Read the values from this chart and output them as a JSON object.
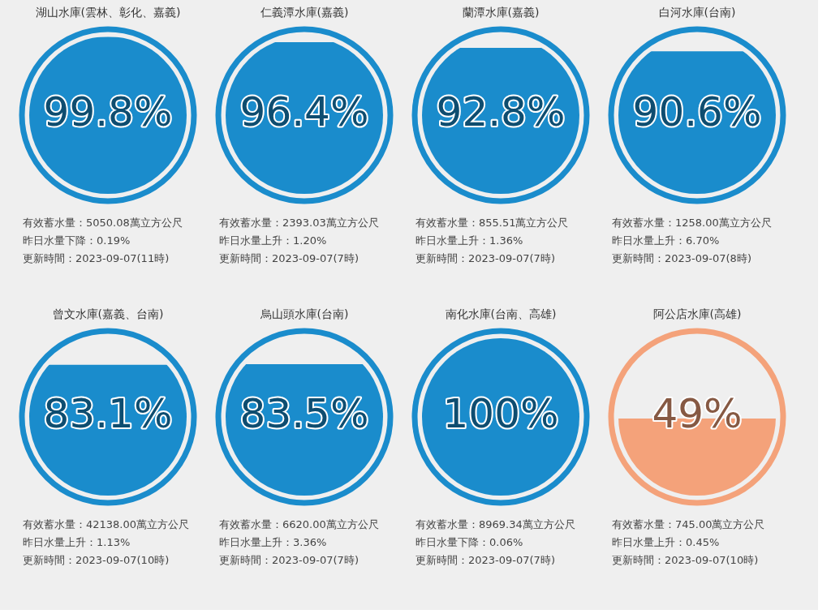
{
  "chart_data": [
    {
      "type": "other",
      "title": "湖山水庫(雲林、彰化、嘉義)",
      "values": [
        99.8
      ],
      "value_labels": [
        "99.8%"
      ],
      "color": "#1a8ccc",
      "annotations": [
        "有效蓄水量：5050.08萬立方公尺",
        "昨日水量下降：0.19%",
        "更新時間：2023-09-07(11時)"
      ]
    },
    {
      "type": "other",
      "title": "仁義潭水庫(嘉義)",
      "values": [
        96.4
      ],
      "value_labels": [
        "96.4%"
      ],
      "color": "#1a8ccc",
      "annotations": [
        "有效蓄水量：2393.03萬立方公尺",
        "昨日水量上升：1.20%",
        "更新時間：2023-09-07(7時)"
      ]
    },
    {
      "type": "other",
      "title": "蘭潭水庫(嘉義)",
      "values": [
        92.8
      ],
      "value_labels": [
        "92.8%"
      ],
      "color": "#1a8ccc",
      "annotations": [
        "有效蓄水量：855.51萬立方公尺",
        "昨日水量上升：1.36%",
        "更新時間：2023-09-07(7時)"
      ]
    },
    {
      "type": "other",
      "title": "白河水庫(台南)",
      "values": [
        90.6
      ],
      "value_labels": [
        "90.6%"
      ],
      "color": "#1a8ccc",
      "annotations": [
        "有效蓄水量：1258.00萬立方公尺",
        "昨日水量上升：6.70%",
        "更新時間：2023-09-07(8時)"
      ]
    },
    {
      "type": "other",
      "title": "曾文水庫(嘉義、台南)",
      "values": [
        83.1
      ],
      "value_labels": [
        "83.1%"
      ],
      "color": "#1a8ccc",
      "annotations": [
        "有效蓄水量：42138.00萬立方公尺",
        "昨日水量上升：1.13%",
        "更新時間：2023-09-07(10時)"
      ]
    },
    {
      "type": "other",
      "title": "烏山頭水庫(台南)",
      "values": [
        83.5
      ],
      "value_labels": [
        "83.5%"
      ],
      "color": "#1a8ccc",
      "annotations": [
        "有效蓄水量：6620.00萬立方公尺",
        "昨日水量上升：3.36%",
        "更新時間：2023-09-07(7時)"
      ]
    },
    {
      "type": "other",
      "title": "南化水庫(台南、高雄)",
      "values": [
        100
      ],
      "value_labels": [
        "100%"
      ],
      "color": "#1a8ccc",
      "annotations": [
        "有效蓄水量：8969.34萬立方公尺",
        "昨日水量下降：0.06%",
        "更新時間：2023-09-07(7時)"
      ]
    },
    {
      "type": "other",
      "title": "阿公店水庫(高雄)",
      "values": [
        49
      ],
      "value_labels": [
        "49%"
      ],
      "color": "#f4a27a",
      "annotations": [
        "有效蓄水量：745.00萬立方公尺",
        "昨日水量上升：0.45%",
        "更新時間：2023-09-07(10時)"
      ]
    }
  ]
}
